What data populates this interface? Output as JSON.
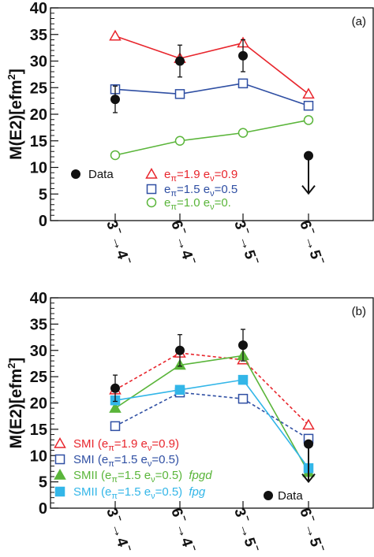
{
  "chart_data": [
    {
      "type": "line",
      "panel_label": "(a)",
      "ylabel": "M(E2)[efm",
      "ylabel_sup": "2",
      "ylabel_close": "]",
      "ylim": [
        0,
        40
      ],
      "yticks": [
        "0",
        "5",
        "10",
        "15",
        "20",
        "25",
        "30",
        "35",
        "40"
      ],
      "categories": [
        {
          "from": "3",
          "to": "4"
        },
        {
          "from": "6",
          "to": "4"
        },
        {
          "from": "3",
          "to": "5"
        },
        {
          "from": "6",
          "to": "5"
        }
      ],
      "series": [
        {
          "name": "e",
          "sub1": "π",
          "mid": "=1.9 e",
          "sub2": "ν",
          "end": "=0.9",
          "color": "#e8262d",
          "marker": "triangle-open",
          "dash": false,
          "values": [
            34.7,
            30.5,
            33.4,
            23.8
          ]
        },
        {
          "name": "e",
          "sub1": "π",
          "mid": "=1.5 e",
          "sub2": "ν",
          "end": "=0.5",
          "color": "#2f4fa3",
          "marker": "square-open",
          "dash": false,
          "values": [
            24.7,
            23.8,
            25.8,
            21.6
          ]
        },
        {
          "name": "e",
          "sub1": "π",
          "mid": "=1.0 e",
          "sub2": "ν",
          "end": "=0.",
          "color": "#5ab53a",
          "marker": "circle-open",
          "dash": false,
          "values": [
            12.3,
            15.0,
            16.5,
            18.9
          ]
        }
      ],
      "data": {
        "name": "Data",
        "points": [
          {
            "value": 22.8,
            "err": 2.5
          },
          {
            "value": 30.0,
            "err": 3.0
          },
          {
            "value": 31.0,
            "err": 3.0
          },
          {
            "value": 12.2,
            "err": 0,
            "upper_limit": true
          }
        ]
      }
    },
    {
      "type": "line",
      "panel_label": "(b)",
      "ylabel": "M(E2)[efm",
      "ylabel_sup": "2",
      "ylabel_close": "]",
      "ylim": [
        0,
        40
      ],
      "yticks": [
        "0",
        "5",
        "10",
        "15",
        "20",
        "25",
        "30",
        "35",
        "40"
      ],
      "categories": [
        {
          "from": "3",
          "to": "4"
        },
        {
          "from": "6",
          "to": "4"
        },
        {
          "from": "3",
          "to": "5"
        },
        {
          "from": "6",
          "to": "5"
        }
      ],
      "series": [
        {
          "name": "SMI (e",
          "sub1": "π",
          "mid": "=1.9 e",
          "sub2": "ν",
          "end": "=0.9)",
          "tag": "",
          "color": "#e8262d",
          "marker": "triangle-open",
          "dash": true,
          "values": [
            22.5,
            29.5,
            28.2,
            15.8
          ]
        },
        {
          "name": "SMI (e",
          "sub1": "π",
          "mid": "=1.5 e",
          "sub2": "ν",
          "end": "=0.5)",
          "tag": "",
          "color": "#2f4fa3",
          "marker": "square-open",
          "dash": true,
          "values": [
            15.6,
            22.0,
            20.8,
            13.2
          ]
        },
        {
          "name": "SMII (e",
          "sub1": "π",
          "mid": "=1.5 e",
          "sub2": "ν",
          "end": "=0.5)",
          "tag": "fpgd",
          "color": "#5ab53a",
          "marker": "triangle-filled",
          "dash": false,
          "values": [
            19.0,
            27.2,
            29.0,
            6.8
          ]
        },
        {
          "name": "SMII (e",
          "sub1": "π",
          "mid": "=1.5 e",
          "sub2": "ν",
          "end": "=0.5)",
          "tag": "fpg",
          "color": "#33b6e8",
          "marker": "square-filled",
          "dash": false,
          "values": [
            20.5,
            22.5,
            24.4,
            7.6
          ]
        }
      ],
      "data": {
        "name": "Data",
        "points": [
          {
            "value": 22.8,
            "err": 2.5
          },
          {
            "value": 30.0,
            "err": 3.0
          },
          {
            "value": 31.0,
            "err": 3.0
          },
          {
            "value": 12.2,
            "err": 0,
            "upper_limit": true
          }
        ]
      }
    }
  ]
}
